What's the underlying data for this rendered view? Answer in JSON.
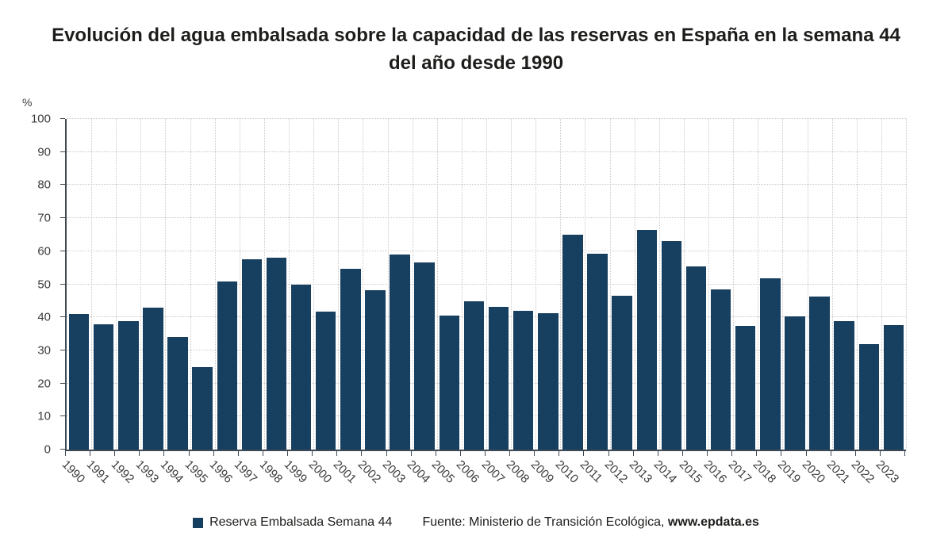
{
  "title": "Evolución del agua embalsada sobre la capacidad de las reservas en España en la semana 44 del año desde 1990",
  "legend": {
    "label": "Reserva Embalsada Semana 44",
    "source_prefix": "Fuente: Ministerio de Transición Ecológica, ",
    "source_site": "www.epdata.es"
  },
  "colors": {
    "bar": "#173f5f",
    "grid": "#c9c9c9",
    "axis": "#3f4a54",
    "title_text": "#1d1d1b",
    "tick_text": "#3c3c3b"
  },
  "chart_data": {
    "type": "bar",
    "title": "Evolución del agua embalsada sobre la capacidad de las reservas en España en la semana 44 del año desde 1990",
    "xlabel": "",
    "ylabel": "%",
    "ylim": [
      0,
      100
    ],
    "y_ticks": [
      0,
      10,
      20,
      30,
      40,
      50,
      60,
      70,
      80,
      90,
      100
    ],
    "grid": "dotted",
    "legend_position": "bottom",
    "categories": [
      "1990",
      "1991",
      "1992",
      "1993",
      "1994",
      "1995",
      "1996",
      "1997",
      "1998",
      "1999",
      "2000",
      "2001",
      "2002",
      "2003",
      "2004",
      "2005",
      "2006",
      "2007",
      "2008",
      "2009",
      "2010",
      "2011",
      "2012",
      "2013",
      "2014",
      "2015",
      "2016",
      "2017",
      "2018",
      "2019",
      "2020",
      "2021",
      "2022",
      "2023"
    ],
    "series": [
      {
        "name": "Reserva Embalsada Semana 44",
        "values": [
          41,
          38,
          38.8,
          43,
          34,
          25,
          50.8,
          57.6,
          58,
          49.9,
          41.8,
          54.7,
          48.2,
          59,
          56.6,
          40.5,
          44.8,
          43.2,
          42,
          41.2,
          65,
          59.2,
          46.5,
          66.4,
          63,
          55.4,
          48.4,
          37.5,
          51.8,
          40.2,
          46.4,
          38.8,
          32,
          37.7
        ]
      }
    ],
    "source": "Fuente: Ministerio de Transición Ecológica, www.epdata.es"
  }
}
